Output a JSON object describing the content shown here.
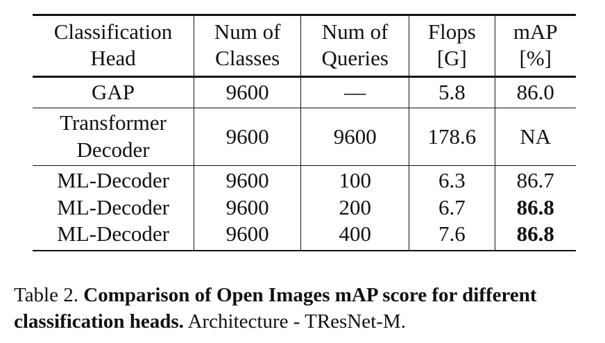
{
  "table": {
    "headers": [
      [
        "Classification",
        "Head"
      ],
      [
        "Num of",
        "Classes"
      ],
      [
        "Num of",
        "Queries"
      ],
      [
        "Flops",
        "[G]"
      ],
      [
        "mAP",
        "[%]"
      ]
    ],
    "groups": [
      {
        "rows": [
          {
            "head": [
              "GAP"
            ],
            "classes": "9600",
            "queries": "—",
            "flops": "5.8",
            "map": "86.0",
            "map_bold": false
          }
        ]
      },
      {
        "rows": [
          {
            "head": [
              "Transformer",
              "Decoder"
            ],
            "classes": "9600",
            "queries": "9600",
            "flops": "178.6",
            "map": "NA",
            "map_bold": false
          }
        ]
      },
      {
        "rows": [
          {
            "head": [
              "ML-Decoder"
            ],
            "classes": "9600",
            "queries": "100",
            "flops": "6.3",
            "map": "86.7",
            "map_bold": false
          },
          {
            "head": [
              "ML-Decoder"
            ],
            "classes": "9600",
            "queries": "200",
            "flops": "6.7",
            "map": "86.8",
            "map_bold": true
          },
          {
            "head": [
              "ML-Decoder"
            ],
            "classes": "9600",
            "queries": "400",
            "flops": "7.6",
            "map": "86.8",
            "map_bold": true
          }
        ]
      }
    ]
  },
  "caption": {
    "label": "Table 2.",
    "title": "Comparison of Open Images mAP score for different classification heads.",
    "text": "Architecture - TResNet-M."
  }
}
